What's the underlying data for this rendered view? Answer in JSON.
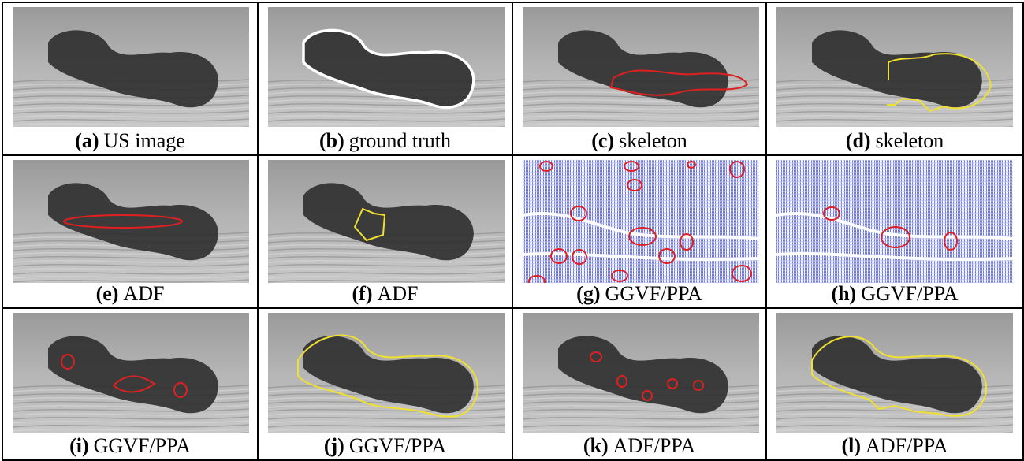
{
  "panels": [
    {
      "label": "(a)",
      "caption": "US image"
    },
    {
      "label": "(b)",
      "caption": "ground truth"
    },
    {
      "label": "(c)",
      "caption": "skeleton"
    },
    {
      "label": "(d)",
      "caption": "skeleton"
    },
    {
      "label": "(e)",
      "caption": "ADF"
    },
    {
      "label": "(f)",
      "caption": "ADF"
    },
    {
      "label": "(g)",
      "caption": "GGVF/PPA"
    },
    {
      "label": "(h)",
      "caption": "GGVF/PPA"
    },
    {
      "label": "(i)",
      "caption": "GGVF/PPA"
    },
    {
      "label": "(j)",
      "caption": "GGVF/PPA"
    },
    {
      "label": "(k)",
      "caption": "ADF/PPA"
    },
    {
      "label": "(l)",
      "caption": "ADF/PPA"
    }
  ]
}
